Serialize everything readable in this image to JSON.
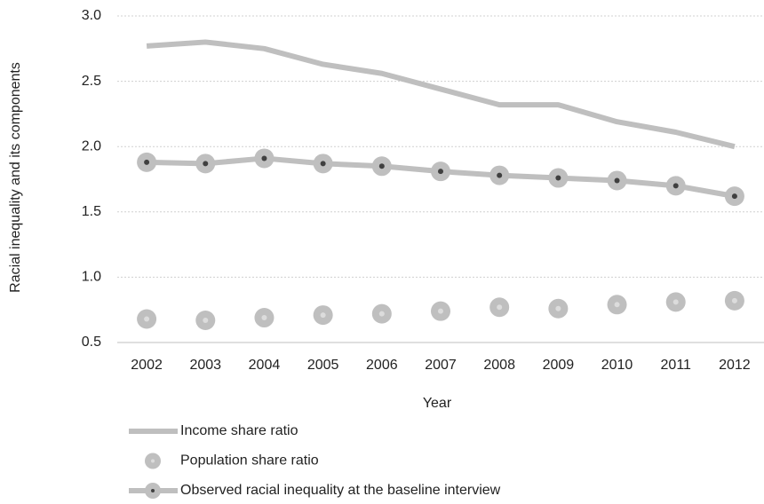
{
  "chart_data": {
    "type": "line",
    "x_label": "Year",
    "y_label": "Racial inequality and its components",
    "categories": [
      "2002",
      "2003",
      "2004",
      "2005",
      "2006",
      "2007",
      "2008",
      "2009",
      "2010",
      "2011",
      "2012"
    ],
    "series": [
      {
        "name": "Income share ratio",
        "color": "#bfbfbf",
        "style": "line",
        "values": [
          2.77,
          2.8,
          2.75,
          2.63,
          2.56,
          2.44,
          2.32,
          2.32,
          2.19,
          2.11,
          2.0
        ]
      },
      {
        "name": "Population share ratio",
        "color": "#bfbfbf",
        "style": "markers",
        "values": [
          0.68,
          0.67,
          0.69,
          0.71,
          0.72,
          0.74,
          0.77,
          0.76,
          0.79,
          0.81,
          0.82
        ]
      },
      {
        "name": "Observed racial inequality at the baseline interview",
        "color": "#bfbfbf",
        "style": "line+markers",
        "values": [
          1.88,
          1.87,
          1.91,
          1.87,
          1.85,
          1.81,
          1.78,
          1.76,
          1.74,
          1.7,
          1.62
        ]
      }
    ],
    "ylim": [
      0.5,
      3.0
    ],
    "yticks": [
      0.5,
      {
        "value": 1.0,
        "label": "1.0"
      },
      1.5,
      {
        "value": 2.0,
        "label": "2.0"
      },
      2.5,
      {
        "value": 3.0,
        "label": "3.0"
      }
    ],
    "grid": true,
    "legend": "bottom"
  }
}
